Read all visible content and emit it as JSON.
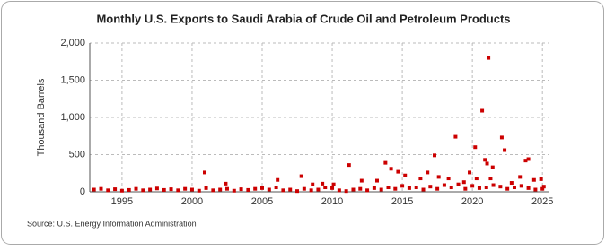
{
  "chart_data": {
    "type": "scatter",
    "title": "Monthly U.S. Exports to Saudi Arabia of Crude Oil and Petroleum Products",
    "y_label": "Thousand Barrels",
    "source": "Source: U.S. Energy Information Administration",
    "color": "#cc0000",
    "grid": true,
    "xlim": [
      1992.7,
      2025.5
    ],
    "xticks": [
      1995,
      2000,
      2005,
      2010,
      2015,
      2020,
      2025
    ],
    "ylim": [
      0,
      2000
    ],
    "yticks": [
      0,
      500,
      {
        "value": 1000,
        "label": "1,000"
      },
      {
        "value": 1500,
        "label": "1,500"
      },
      {
        "value": 2000,
        "label": "2,000"
      }
    ],
    "x": [
      1993,
      1993.5,
      1994,
      1994.5,
      1995,
      1995.5,
      1996,
      1996.5,
      1997,
      1997.5,
      1998,
      1998.5,
      1999,
      1999.5,
      2000,
      2000.5,
      2001,
      2001.5,
      2002,
      2002.5,
      2003,
      2003.5,
      2004,
      2004.5,
      2005,
      2005.5,
      2006,
      2006.5,
      2007,
      2007.5,
      2008,
      2008.5,
      2009,
      2009.5,
      2010,
      2010.5,
      2011,
      2011.5,
      2012,
      2012.5,
      2013,
      2013.5,
      2014,
      2014.5,
      2015,
      2015.5,
      2016,
      2016.5,
      2017,
      2017.5,
      2018,
      2018.5,
      2019,
      2019.5,
      2020,
      2020.5,
      2021,
      2021.5,
      2022,
      2022.5,
      2023,
      2023.5,
      2024,
      2024.5,
      2025,
      2000.9,
      2002.4,
      2006.1,
      2007.8,
      2008.6,
      2009.3,
      2010.1,
      2011.2,
      2012.1,
      2013.2,
      2013.8,
      2014.2,
      2014.7,
      2015.2,
      2016.3,
      2016.8,
      2017.3,
      2017.6,
      2018.3,
      2018.8,
      2019.4,
      2019.8,
      2020.2,
      2020.3,
      2020.7,
      2020.9,
      2021.05,
      2021.15,
      2021.3,
      2021.45,
      2022.1,
      2022.3,
      2022.8,
      2023.4,
      2023.8,
      2024.0,
      2024.4,
      2024.9,
      2025.1
    ],
    "values": [
      30,
      40,
      20,
      35,
      15,
      25,
      40,
      20,
      30,
      45,
      25,
      35,
      20,
      40,
      30,
      15,
      50,
      20,
      30,
      40,
      15,
      35,
      25,
      40,
      50,
      30,
      60,
      20,
      30,
      10,
      40,
      20,
      30,
      60,
      50,
      20,
      10,
      30,
      40,
      20,
      50,
      30,
      60,
      40,
      80,
      50,
      60,
      30,
      70,
      40,
      90,
      60,
      100,
      40,
      80,
      50,
      60,
      90,
      70,
      40,
      60,
      80,
      50,
      30,
      40,
      260,
      110,
      160,
      210,
      100,
      110,
      100,
      360,
      150,
      150,
      390,
      310,
      270,
      220,
      180,
      260,
      490,
      200,
      180,
      740,
      130,
      260,
      600,
      180,
      1090,
      430,
      380,
      1800,
      180,
      330,
      730,
      560,
      120,
      200,
      420,
      440,
      160,
      170,
      70
    ]
  }
}
